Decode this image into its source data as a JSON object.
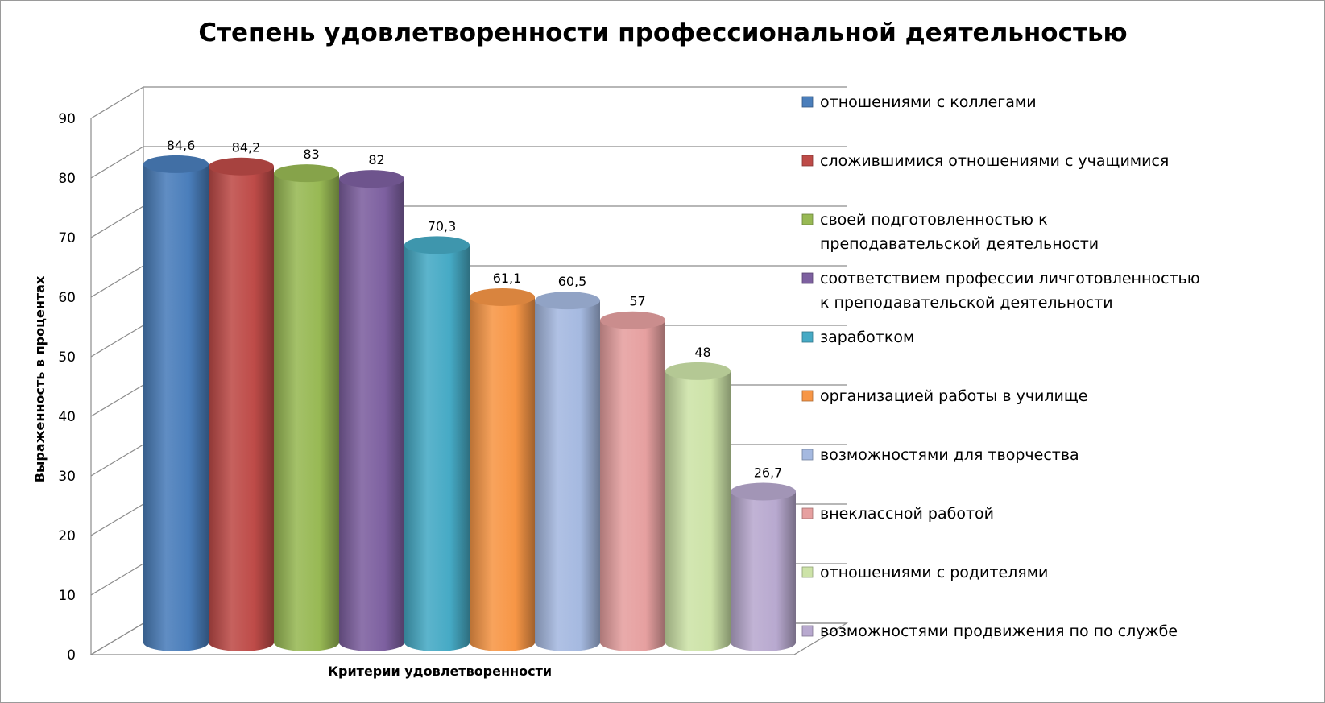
{
  "chart_data": {
    "type": "bar",
    "style": "3d-cylinder",
    "title": "Степень удовлетворенности профессиональной деятельностью",
    "xlabel": "Критерии удовлетворенности",
    "ylabel": "Выраженность в процентах",
    "ylim": [
      0,
      90
    ],
    "yticks": [
      "0",
      "10",
      "20",
      "30",
      "40",
      "50",
      "60",
      "70",
      "80",
      "90"
    ],
    "grid": true,
    "legend_position": "right",
    "series": [
      {
        "name": "отношениями с коллегами",
        "value": 84.6,
        "label": "84,6",
        "color": "#4a7ebb"
      },
      {
        "name": "сложившимися отношениями с учащимися",
        "value": 84.2,
        "label": "84,2",
        "color": "#be4b48"
      },
      {
        "name": "своей подготовленностью к преподавательской деятельности",
        "value": 83,
        "label": "83",
        "color": "#98b954"
      },
      {
        "name": "соответствием профессии личготовленностью к преподавательской деятельности",
        "value": 82,
        "label": "82",
        "color": "#7d60a0"
      },
      {
        "name": "заработком",
        "value": 70.3,
        "label": "70,3",
        "color": "#46aac5"
      },
      {
        "name": "организацией работы в училище",
        "value": 61.1,
        "label": "61,1",
        "color": "#f79646"
      },
      {
        "name": "возможностями для творчества",
        "value": 60.5,
        "label": "60,5",
        "color": "#a5b9e0"
      },
      {
        "name": "внеклассной работой",
        "value": 57,
        "label": "57",
        "color": "#e6a0a0"
      },
      {
        "name": "отношениями с родителями",
        "value": 48,
        "label": "48",
        "color": "#cde3a8"
      },
      {
        "name": "возможностями продвижения по по службе",
        "value": 26.7,
        "label": "26,7",
        "color": "#b8a9cf"
      }
    ]
  },
  "legend": [
    [
      "отношениями с коллегами"
    ],
    [
      "сложившимися отношениями с учащимися"
    ],
    [
      "своей подготовленностью к",
      "преподавательской деятельности"
    ],
    [
      "соответствием профессии личготовленностью",
      "к преподавательской деятельности"
    ],
    [
      "заработком"
    ],
    [
      "организацией работы в училище"
    ],
    [
      "возможностями для творчества"
    ],
    [
      "внеклассной работой"
    ],
    [
      "отношениями с родителями"
    ],
    [
      "возможностями продвижения по по службе"
    ]
  ]
}
